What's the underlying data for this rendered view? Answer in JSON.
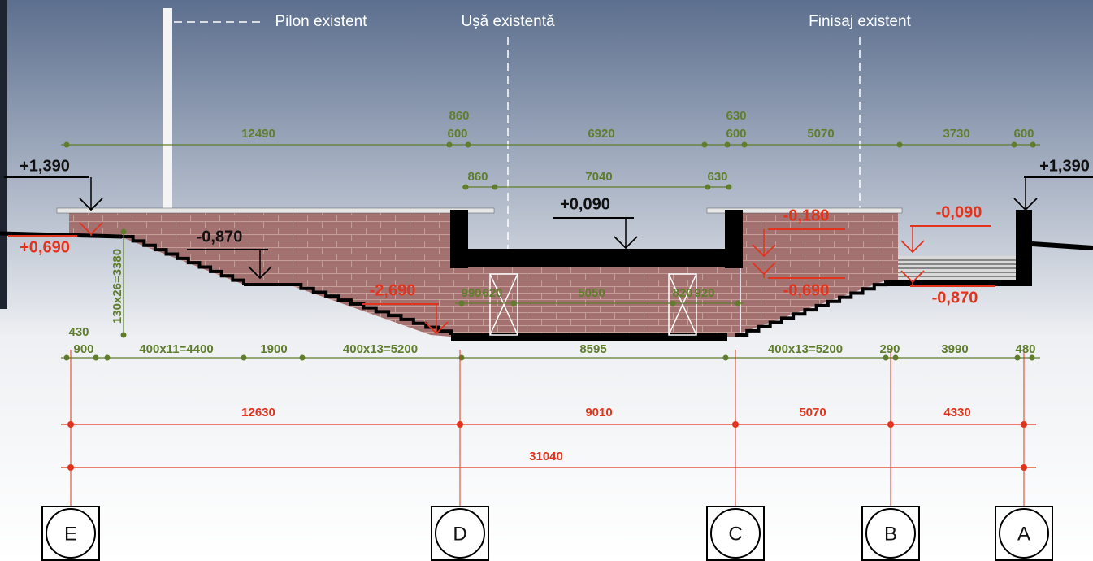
{
  "annotations": {
    "pylon": "Pilon existent",
    "door": "Ușă existentă",
    "finish": "Finisaj existent"
  },
  "levels": [
    "+1,390",
    "+1,390",
    "+0,690",
    "-0,870",
    "-2,690",
    "+0,090",
    "-0,180",
    "-0,090",
    "-0,690",
    "-0,870"
  ],
  "dimensions": {
    "top_row": [
      860,
      600,
      12490,
      6920,
      630,
      600,
      5070,
      3730,
      600
    ],
    "second_row": [
      860,
      7040,
      630
    ],
    "inner_row": [
      990,
      620,
      5050,
      820,
      920
    ],
    "bottom_row": [
      430,
      900,
      "400x11=4400",
      1900,
      "400x13=5200",
      8595,
      "400x13=5200",
      290,
      3990,
      480
    ],
    "vertical": "130x26=3380",
    "axis_spacing": [
      12630,
      9010,
      5070,
      4330
    ],
    "overall": 31040
  },
  "axes": [
    "E",
    "D",
    "C",
    "B",
    "A"
  ]
}
